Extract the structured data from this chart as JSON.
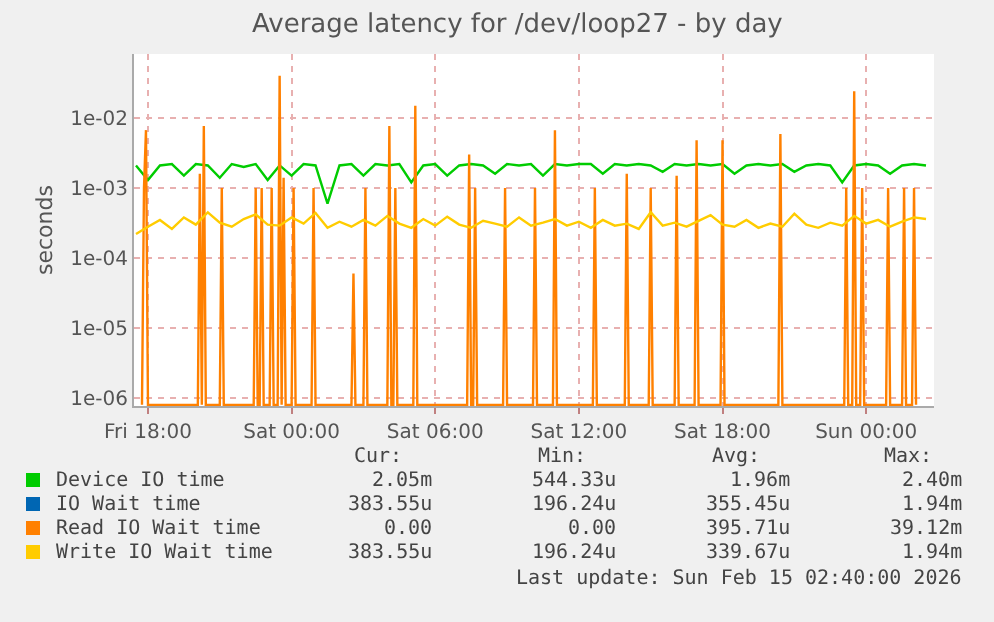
{
  "chart_data": {
    "type": "line",
    "title": "Average latency for /dev/loop27 - by day",
    "ylabel": "seconds",
    "x": [
      "2026-02-13T17:30",
      "2026-02-13T18:00",
      "2026-02-13T18:30",
      "2026-02-13T19:00",
      "2026-02-13T19:30",
      "2026-02-13T20:00",
      "2026-02-13T20:30",
      "2026-02-13T21:00",
      "2026-02-13T21:30",
      "2026-02-13T22:00",
      "2026-02-13T22:30",
      "2026-02-13T23:00",
      "2026-02-13T23:30",
      "2026-02-14T00:00",
      "2026-02-14T00:30",
      "2026-02-14T01:00",
      "2026-02-14T01:30",
      "2026-02-14T02:00",
      "2026-02-14T02:30",
      "2026-02-14T03:00",
      "2026-02-14T03:30",
      "2026-02-14T04:00",
      "2026-02-14T04:30",
      "2026-02-14T05:00",
      "2026-02-14T05:30",
      "2026-02-14T06:00",
      "2026-02-14T06:30",
      "2026-02-14T07:00",
      "2026-02-14T07:30",
      "2026-02-14T08:00",
      "2026-02-14T08:30",
      "2026-02-14T09:00",
      "2026-02-14T09:30",
      "2026-02-14T10:00",
      "2026-02-14T10:30",
      "2026-02-14T11:00",
      "2026-02-14T11:30",
      "2026-02-14T12:00",
      "2026-02-14T12:30",
      "2026-02-14T13:00",
      "2026-02-14T13:30",
      "2026-02-14T14:00",
      "2026-02-14T14:30",
      "2026-02-14T15:00",
      "2026-02-14T15:30",
      "2026-02-14T16:00",
      "2026-02-14T16:30",
      "2026-02-14T17:00",
      "2026-02-14T17:30",
      "2026-02-14T18:00",
      "2026-02-14T18:30",
      "2026-02-14T19:00",
      "2026-02-14T19:30",
      "2026-02-14T20:00",
      "2026-02-14T20:30",
      "2026-02-14T21:00",
      "2026-02-14T21:30",
      "2026-02-14T22:00",
      "2026-02-14T22:30",
      "2026-02-14T23:00",
      "2026-02-14T23:30",
      "2026-02-15T00:00",
      "2026-02-15T00:30",
      "2026-02-15T01:00",
      "2026-02-15T01:30",
      "2026-02-15T02:00",
      "2026-02-15T02:30"
    ],
    "series": [
      {
        "name": "Device IO time",
        "color": "#00cc00",
        "values": [
          0.0021,
          0.0013,
          0.0021,
          0.0022,
          0.0015,
          0.0022,
          0.0021,
          0.0014,
          0.0022,
          0.002,
          0.0022,
          0.0013,
          0.0021,
          0.0015,
          0.0022,
          0.0021,
          0.0006,
          0.0021,
          0.0022,
          0.0015,
          0.0022,
          0.0021,
          0.0022,
          0.0012,
          0.0021,
          0.0022,
          0.0015,
          0.0021,
          0.0022,
          0.0021,
          0.0016,
          0.0022,
          0.0021,
          0.0022,
          0.0015,
          0.0022,
          0.0021,
          0.0022,
          0.0022,
          0.0016,
          0.0022,
          0.0021,
          0.0022,
          0.0021,
          0.0017,
          0.0022,
          0.0021,
          0.0022,
          0.0021,
          0.0022,
          0.0016,
          0.0021,
          0.0022,
          0.0021,
          0.0022,
          0.0017,
          0.0021,
          0.0022,
          0.0021,
          0.0012,
          0.0021,
          0.0022,
          0.0021,
          0.0016,
          0.0021,
          0.0022,
          0.0021
        ]
      },
      {
        "name": "IO Wait time",
        "color": "#0066b3",
        "values": [
          null,
          null,
          null,
          null,
          null,
          null,
          null,
          null,
          null,
          null,
          null,
          null,
          null,
          null,
          null,
          null,
          null,
          null,
          null,
          null,
          null,
          null,
          null,
          null,
          null,
          null,
          null,
          null,
          null,
          null,
          null,
          null,
          null,
          null,
          null,
          null,
          null,
          null,
          null,
          null,
          null,
          null,
          null,
          null,
          null,
          null,
          null,
          null,
          null,
          null,
          null,
          null,
          null,
          null,
          null,
          null,
          null,
          null,
          null,
          null,
          null,
          null,
          null,
          null,
          null,
          null,
          null
        ]
      },
      {
        "name": "Read IO Wait time",
        "color": "#ff8000",
        "x": [
          "2026-02-13T17:45",
          "2026-02-13T17:50",
          "2026-02-13T17:55",
          "2026-02-13T18:00",
          "2026-02-13T20:05",
          "2026-02-13T20:10",
          "2026-02-13T20:15",
          "2026-02-13T20:20",
          "2026-02-13T20:25",
          "2026-02-13T21:00",
          "2026-02-13T21:05",
          "2026-02-13T21:10",
          "2026-02-13T22:25",
          "2026-02-13T22:30",
          "2026-02-13T22:35",
          "2026-02-13T22:40",
          "2026-02-13T22:45",
          "2026-02-13T22:50",
          "2026-02-13T23:05",
          "2026-02-13T23:10",
          "2026-02-13T23:15",
          "2026-02-13T23:25",
          "2026-02-13T23:30",
          "2026-02-13T23:35",
          "2026-02-13T23:40",
          "2026-02-13T23:45",
          "2026-02-14T00:00",
          "2026-02-14T00:05",
          "2026-02-14T00:10",
          "2026-02-14T00:50",
          "2026-02-14T00:55",
          "2026-02-14T01:00",
          "2026-02-14T02:30",
          "2026-02-14T02:35",
          "2026-02-14T02:40",
          "2026-02-14T03:00",
          "2026-02-14T03:05",
          "2026-02-14T03:10",
          "2026-02-14T04:00",
          "2026-02-14T04:05",
          "2026-02-14T04:10",
          "2026-02-14T04:15",
          "2026-02-14T04:20",
          "2026-02-14T04:25",
          "2026-02-14T05:05",
          "2026-02-14T05:10",
          "2026-02-14T05:15",
          "2026-02-14T07:20",
          "2026-02-14T07:25",
          "2026-02-14T07:30",
          "2026-02-14T07:35",
          "2026-02-14T07:40",
          "2026-02-14T07:45",
          "2026-02-14T08:50",
          "2026-02-14T08:55",
          "2026-02-14T09:00",
          "2026-02-14T10:05",
          "2026-02-14T10:10",
          "2026-02-14T10:15",
          "2026-02-14T10:55",
          "2026-02-14T11:00",
          "2026-02-14T11:05",
          "2026-02-14T12:35",
          "2026-02-14T12:40",
          "2026-02-14T12:45",
          "2026-02-14T13:55",
          "2026-02-14T14:00",
          "2026-02-14T14:05",
          "2026-02-14T14:55",
          "2026-02-14T15:00",
          "2026-02-14T15:05",
          "2026-02-14T16:00",
          "2026-02-14T16:05",
          "2026-02-14T16:10",
          "2026-02-14T16:50",
          "2026-02-14T16:55",
          "2026-02-14T17:00",
          "2026-02-14T17:55",
          "2026-02-14T18:00",
          "2026-02-14T18:05",
          "2026-02-14T20:20",
          "2026-02-14T20:25",
          "2026-02-14T20:30",
          "2026-02-14T23:05",
          "2026-02-14T23:10",
          "2026-02-14T23:15",
          "2026-02-14T23:25",
          "2026-02-14T23:30",
          "2026-02-14T23:35",
          "2026-02-14T23:45",
          "2026-02-14T23:50",
          "2026-02-14T23:55",
          "2026-02-15T00:50",
          "2026-02-15T00:55",
          "2026-02-15T01:00",
          "2026-02-15T01:30",
          "2026-02-15T01:35",
          "2026-02-15T01:40",
          "2026-02-15T01:55",
          "2026-02-15T02:00",
          "2026-02-15T02:05"
        ],
        "values": [
          8e-07,
          0.001,
          0.0067,
          8e-07,
          8e-07,
          0.0016,
          8e-07,
          0.0077,
          8e-07,
          8e-07,
          0.001,
          8e-07,
          8e-07,
          0.001,
          8e-07,
          8e-07,
          0.001,
          8e-07,
          8e-07,
          0.001,
          8e-07,
          8e-07,
          0.04,
          8e-07,
          0.0014,
          8e-07,
          8e-07,
          0.001,
          8e-07,
          8e-07,
          0.001,
          8e-07,
          8e-07,
          6e-05,
          8e-07,
          8e-07,
          0.001,
          8e-07,
          8e-07,
          0.0077,
          8e-07,
          8e-07,
          0.001,
          8e-07,
          8e-07,
          0.015,
          8e-07,
          8e-07,
          0.003,
          8e-07,
          8e-07,
          0.001,
          8e-07,
          8e-07,
          0.001,
          8e-07,
          8e-07,
          0.001,
          8e-07,
          8e-07,
          0.0067,
          8e-07,
          8e-07,
          0.001,
          8e-07,
          8e-07,
          0.0016,
          8e-07,
          8e-07,
          0.001,
          8e-07,
          8e-07,
          0.0015,
          8e-07,
          8e-07,
          0.0048,
          8e-07,
          8e-07,
          0.0048,
          8e-07,
          8e-07,
          0.0059,
          8e-07,
          8e-07,
          0.001,
          8e-07,
          8e-07,
          0.024,
          8e-07,
          8e-07,
          0.001,
          8e-07,
          8e-07,
          0.001,
          8e-07,
          8e-07,
          0.001,
          8e-07,
          8e-07,
          0.001,
          8e-07
        ]
      },
      {
        "name": "Write IO Wait time",
        "color": "#ffcc00",
        "values": [
          0.00022,
          0.00028,
          0.00035,
          0.00026,
          0.00038,
          0.0003,
          0.00045,
          0.00032,
          0.00028,
          0.00036,
          0.00042,
          0.0003,
          0.00029,
          0.00038,
          0.00031,
          0.00044,
          0.00027,
          0.00033,
          0.00028,
          0.00035,
          0.00029,
          0.0004,
          0.00031,
          0.00027,
          0.00036,
          0.00029,
          0.00039,
          0.0003,
          0.00027,
          0.00034,
          0.00031,
          0.00028,
          0.00038,
          0.00029,
          0.00032,
          0.00036,
          0.00029,
          0.00033,
          0.00027,
          0.00035,
          0.00029,
          0.00031,
          0.00026,
          0.00045,
          0.00029,
          0.00032,
          0.00028,
          0.00034,
          0.00041,
          0.0003,
          0.00028,
          0.00035,
          0.00027,
          0.00031,
          0.00028,
          0.00043,
          0.0003,
          0.00027,
          0.00032,
          0.00029,
          0.0004,
          0.00031,
          0.00035,
          0.00028,
          0.00033,
          0.00038,
          0.00036
        ]
      }
    ],
    "log": "y",
    "ylim": [
      7.7e-07,
      0.082
    ],
    "yticks": [
      {
        "value": 1e-06,
        "label": "1e-06"
      },
      {
        "value": 1e-05,
        "label": "1e-05"
      },
      {
        "value": 0.0001,
        "label": "1e-04"
      },
      {
        "value": 0.001,
        "label": "1e-03"
      },
      {
        "value": 0.01,
        "label": "1e-02"
      }
    ],
    "xlim": [
      "2026-02-13T17:25",
      "2026-02-15T02:50"
    ],
    "xticks": [
      {
        "value": "2026-02-13T18:00",
        "label": "Fri 18:00"
      },
      {
        "value": "2026-02-14T00:00",
        "label": "Sat 00:00"
      },
      {
        "value": "2026-02-14T06:00",
        "label": "Sat 06:00"
      },
      {
        "value": "2026-02-14T12:00",
        "label": "Sat 12:00"
      },
      {
        "value": "2026-02-14T18:00",
        "label": "Sat 18:00"
      },
      {
        "value": "2026-02-15T00:00",
        "label": "Sun 00:00"
      }
    ],
    "grid": true,
    "legend": "bottom",
    "line_style": "solid",
    "marker": "none",
    "annotations": [
      "Cur:",
      "Min:",
      "Avg:",
      "Max:",
      "2.05m",
      "544.33u",
      "1.96m",
      "2.40m",
      "383.55u",
      "196.24u",
      "355.45u",
      "1.94m",
      "0.00",
      "0.00",
      "395.71u",
      "39.12m",
      "383.55u",
      "196.24u",
      "339.67u",
      "1.94m",
      "Last update: Sun Feb 15 02:40:00 2026"
    ]
  }
}
